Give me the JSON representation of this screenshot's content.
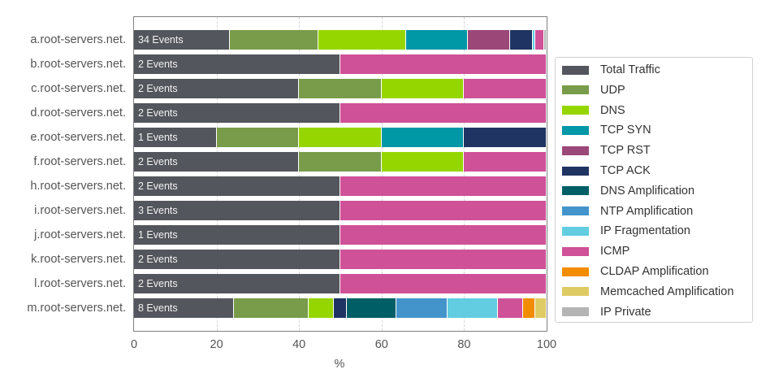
{
  "chart_data": {
    "type": "bar",
    "orientation": "horizontal",
    "stacked": true,
    "title": "",
    "xlabel": "%",
    "ylabel": "",
    "xlim": [
      0,
      100
    ],
    "xticks": [
      "0",
      "20",
      "40",
      "60",
      "80",
      "100"
    ],
    "grid": true,
    "legend_position": "right",
    "categories": [
      "a.root-servers.net.",
      "b.root-servers.net.",
      "c.root-servers.net.",
      "d.root-servers.net.",
      "e.root-servers.net.",
      "f.root-servers.net.",
      "h.root-servers.net.",
      "i.root-servers.net.",
      "j.root-servers.net.",
      "k.root-servers.net.",
      "l.root-servers.net.",
      "m.root-servers.net."
    ],
    "bar_labels": [
      "34 Events",
      "2 Events",
      "2 Events",
      "2 Events",
      "1 Events",
      "2 Events",
      "2 Events",
      "3 Events",
      "1 Events",
      "2 Events",
      "2 Events",
      "8 Events"
    ],
    "series": [
      {
        "name": "Total Traffic",
        "color": "#53565c",
        "values": [
          23.3,
          50,
          40,
          50,
          20,
          40,
          50,
          50,
          50,
          50,
          50,
          24.2
        ]
      },
      {
        "name": "UDP",
        "color": "#789c4a",
        "values": [
          21.3,
          0,
          20,
          0,
          20,
          20,
          0,
          0,
          0,
          0,
          0,
          18.2
        ]
      },
      {
        "name": "DNS",
        "color": "#96d600",
        "values": [
          21.4,
          0,
          20,
          0,
          20,
          20,
          0,
          0,
          0,
          0,
          0,
          6.1
        ]
      },
      {
        "name": "TCP SYN",
        "color": "#0097a7",
        "values": [
          14.9,
          0,
          0,
          0,
          20,
          0,
          0,
          0,
          0,
          0,
          0,
          0
        ]
      },
      {
        "name": "TCP RST",
        "color": "#9b4778",
        "values": [
          10.2,
          0,
          0,
          0,
          0,
          0,
          0,
          0,
          0,
          0,
          0,
          0
        ]
      },
      {
        "name": "TCP ACK",
        "color": "#1f3462",
        "values": [
          5.5,
          0,
          0,
          0,
          20,
          0,
          0,
          0,
          0,
          0,
          0,
          3.0
        ]
      },
      {
        "name": "DNS Amplification",
        "color": "#005f66",
        "values": [
          0,
          0,
          0,
          0,
          0,
          0,
          0,
          0,
          0,
          0,
          0,
          12.1
        ]
      },
      {
        "name": "NTP Amplification",
        "color": "#4494cc",
        "values": [
          0,
          0,
          0,
          0,
          0,
          0,
          0,
          0,
          0,
          0,
          0,
          12.4
        ]
      },
      {
        "name": "IP Fragmentation",
        "color": "#62cde0",
        "values": [
          0.6,
          0,
          0,
          0,
          0,
          0,
          0,
          0,
          0,
          0,
          0,
          12.2
        ]
      },
      {
        "name": "ICMP",
        "color": "#cf5198",
        "values": [
          2.2,
          50,
          20,
          50,
          0,
          20,
          50,
          50,
          50,
          50,
          50,
          6.1
        ]
      },
      {
        "name": "CLDAP Amplification",
        "color": "#f28c00",
        "values": [
          0,
          0,
          0,
          0,
          0,
          0,
          0,
          0,
          0,
          0,
          0,
          2.9
        ]
      },
      {
        "name": "Memcached Amplification",
        "color": "#dfcb63",
        "values": [
          0,
          0,
          0,
          0,
          0,
          0,
          0,
          0,
          0,
          0,
          0,
          2.8
        ]
      },
      {
        "name": "IP Private",
        "color": "#b4b4b4",
        "values": [
          0.6,
          0,
          0,
          0,
          0,
          0,
          0,
          0,
          0,
          0,
          0,
          0
        ]
      }
    ]
  }
}
